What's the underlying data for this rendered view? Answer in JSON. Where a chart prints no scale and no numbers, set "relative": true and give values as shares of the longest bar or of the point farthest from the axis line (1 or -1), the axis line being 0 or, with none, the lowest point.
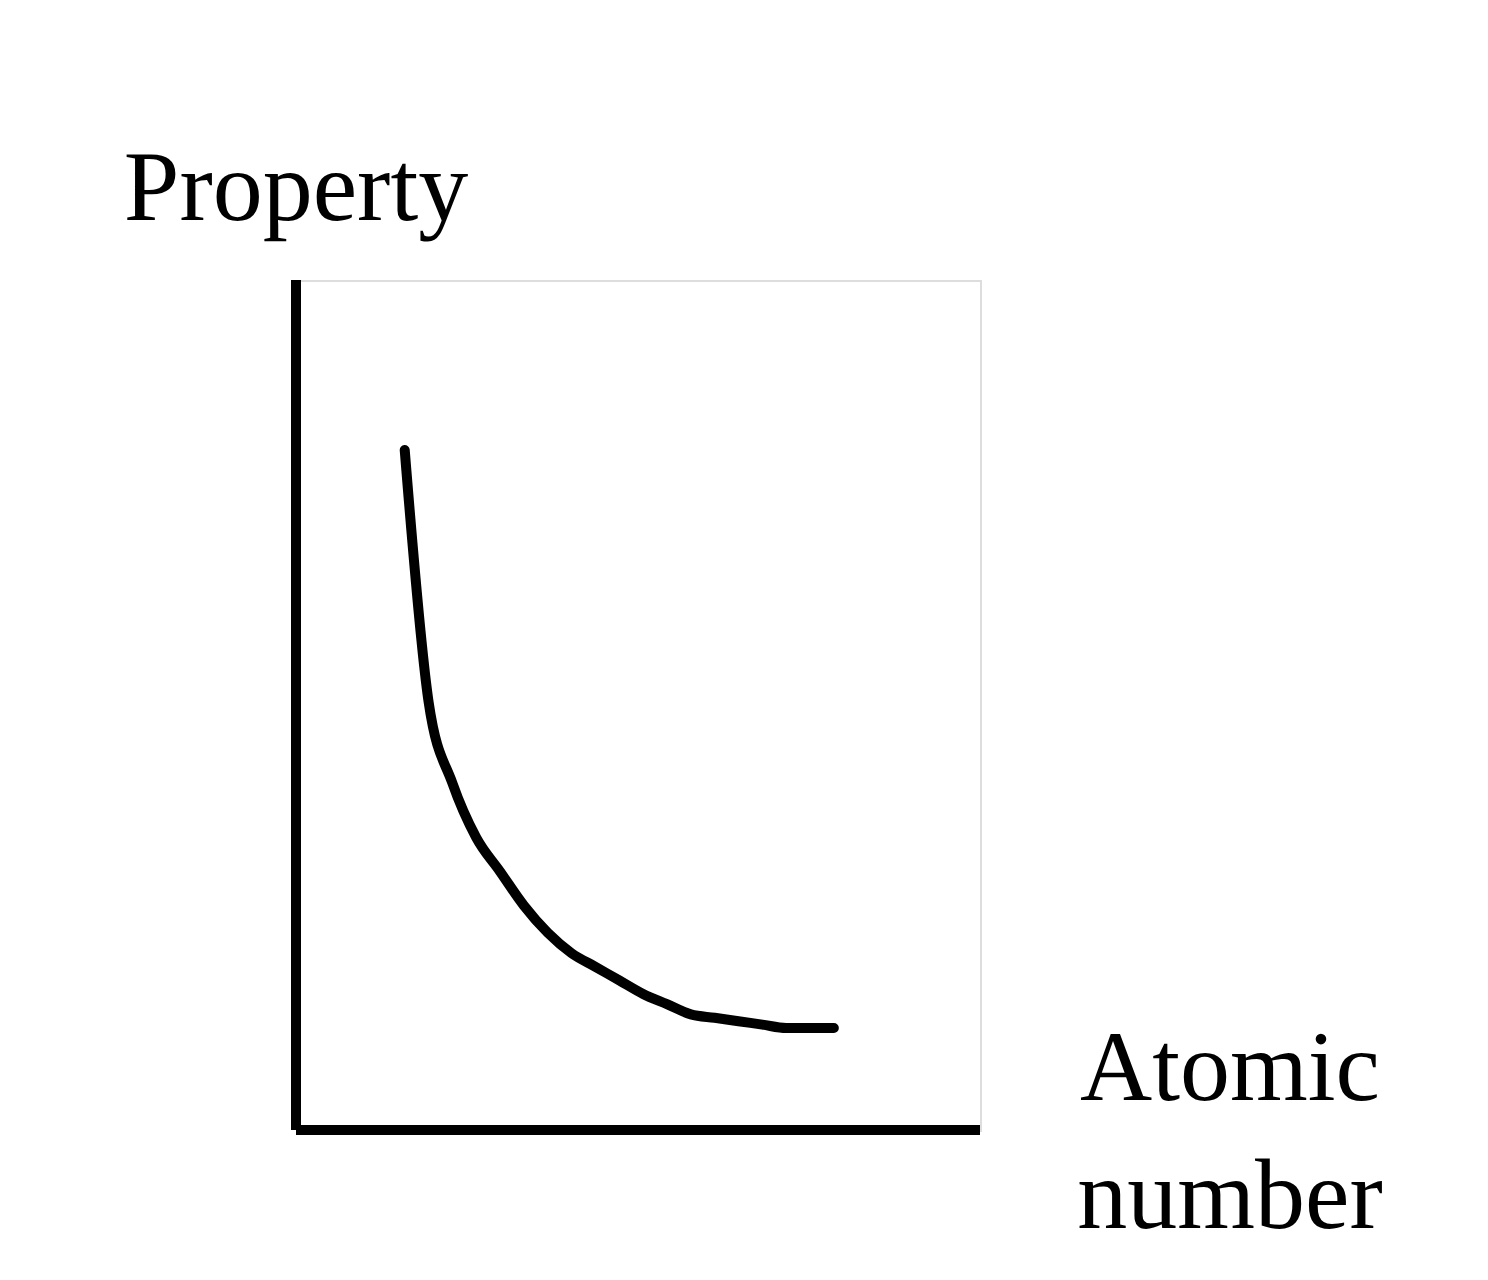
{
  "chart_data": {
    "type": "line",
    "relative": true,
    "ylabel": "Property",
    "xlabel": "Atomic number",
    "color": "#000000",
    "categories": [
      null,
      null,
      null,
      null,
      null,
      null,
      null,
      null,
      null,
      null,
      null,
      null,
      null,
      null,
      null,
      null,
      null,
      null,
      null
    ],
    "values": [
      1.0,
      0.63,
      0.51,
      0.43,
      0.38,
      0.33,
      0.29,
      0.26,
      0.24,
      0.22,
      0.2,
      0.185,
      0.17,
      0.165,
      0.16,
      0.155,
      0.15,
      0.15,
      0.15
    ]
  }
}
